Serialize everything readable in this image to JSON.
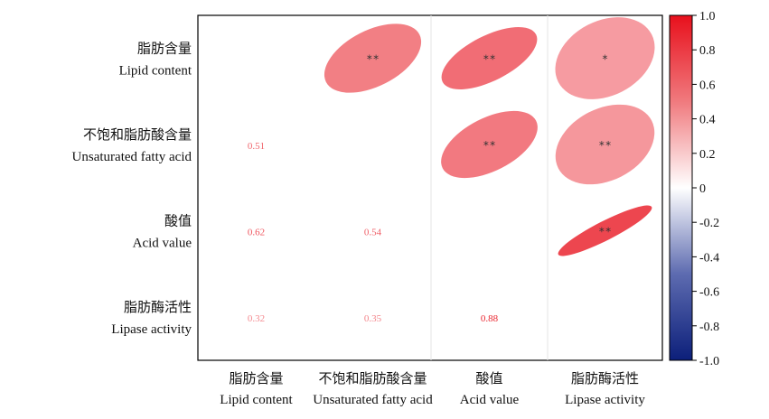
{
  "chart_data": {
    "type": "heatmap",
    "title": "",
    "variables": [
      {
        "cn": "脂肪含量",
        "en": "Lipid content"
      },
      {
        "cn": "不饱和脂肪酸含量",
        "en": "Unsaturated fatty acid"
      },
      {
        "cn": "酸值",
        "en": "Acid value"
      },
      {
        "cn": "脂肪酶活性",
        "en": "Lipase activity"
      }
    ],
    "upper_cells": [
      {
        "row": 0,
        "col": 1,
        "r": 0.51,
        "sig": "**"
      },
      {
        "row": 0,
        "col": 2,
        "r": 0.62,
        "sig": "**"
      },
      {
        "row": 0,
        "col": 3,
        "r": 0.32,
        "sig": "*"
      },
      {
        "row": 1,
        "col": 2,
        "r": 0.54,
        "sig": "**"
      },
      {
        "row": 1,
        "col": 3,
        "r": 0.35,
        "sig": "**"
      },
      {
        "row": 2,
        "col": 3,
        "r": 0.88,
        "sig": "**"
      }
    ],
    "lower_cells": [
      {
        "row": 1,
        "col": 0,
        "text": "0.51",
        "r": 0.51
      },
      {
        "row": 2,
        "col": 0,
        "text": "0.62",
        "r": 0.62
      },
      {
        "row": 2,
        "col": 1,
        "text": "0.54",
        "r": 0.54
      },
      {
        "row": 3,
        "col": 0,
        "text": "0.32",
        "r": 0.32
      },
      {
        "row": 3,
        "col": 1,
        "text": "0.35",
        "r": 0.35
      },
      {
        "row": 3,
        "col": 2,
        "text": "0.88",
        "r": 0.88
      }
    ],
    "colorbar": {
      "range": [
        -1.0,
        1.0
      ],
      "ticks": [
        "1.0",
        "0.8",
        "0.6",
        "0.4",
        "0.2",
        "0",
        "-0.2",
        "-0.4",
        "-0.6",
        "-0.8",
        "-1.0"
      ],
      "colors": {
        "negative": "#0c1f7a",
        "zero": "#ffffff",
        "positive": "#e8101c"
      }
    }
  }
}
